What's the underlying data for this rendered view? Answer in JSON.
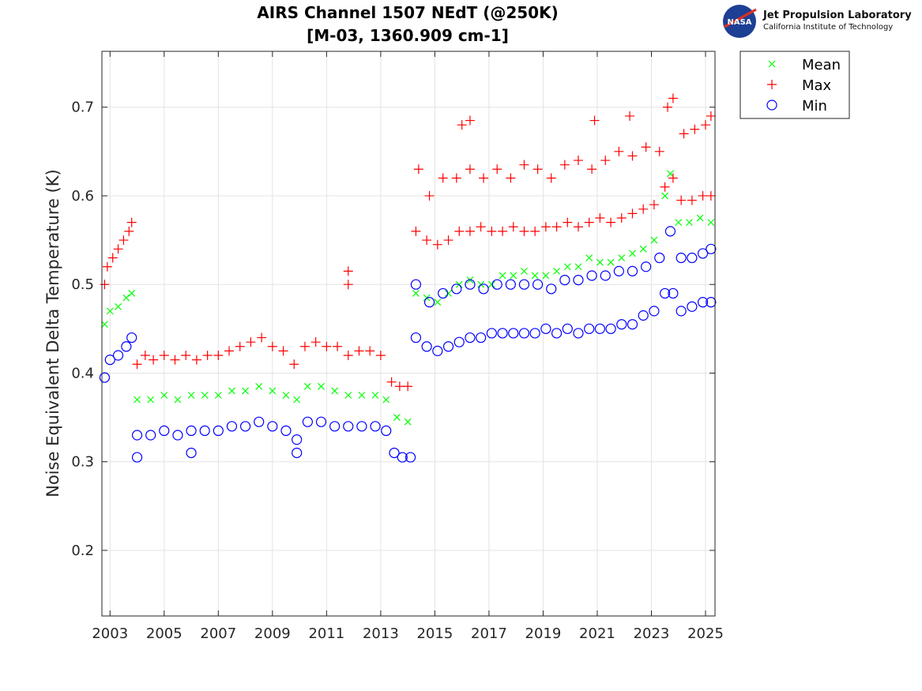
{
  "chart_data": {
    "type": "scatter",
    "title": "AIRS Channel 1507 NEdT (@250K)",
    "subtitle": "[M-03, 1360.909 cm-1]",
    "xlabel": "",
    "ylabel": "Noise Equivalent Delta Temperature (K)",
    "xlim": [
      2002.7,
      2025.35
    ],
    "ylim": [
      0.126,
      0.763
    ],
    "xticks": [
      2003,
      2005,
      2007,
      2009,
      2011,
      2013,
      2015,
      2017,
      2019,
      2021,
      2023,
      2025
    ],
    "xtick_labels": [
      "2003",
      "2005",
      "2007",
      "2009",
      "2011",
      "2013",
      "2015",
      "2017",
      "2019",
      "2021",
      "2023",
      "2025"
    ],
    "yticks": [
      0.2,
      0.3,
      0.4,
      0.5,
      0.6,
      0.7
    ],
    "ytick_labels": [
      "0.2",
      "0.3",
      "0.4",
      "0.5",
      "0.6",
      "0.7"
    ],
    "grid": true,
    "legend_position": "outside-top-right",
    "series": [
      {
        "name": "Mean",
        "marker": "x",
        "color": "#00ff00",
        "points": [
          [
            2002.8,
            0.455
          ],
          [
            2003.0,
            0.47
          ],
          [
            2003.3,
            0.475
          ],
          [
            2003.6,
            0.485
          ],
          [
            2003.8,
            0.49
          ],
          [
            2004.0,
            0.37
          ],
          [
            2004.5,
            0.37
          ],
          [
            2005.0,
            0.375
          ],
          [
            2005.5,
            0.37
          ],
          [
            2006.0,
            0.375
          ],
          [
            2006.5,
            0.375
          ],
          [
            2007.0,
            0.375
          ],
          [
            2007.5,
            0.38
          ],
          [
            2008.0,
            0.38
          ],
          [
            2008.5,
            0.385
          ],
          [
            2009.0,
            0.38
          ],
          [
            2009.5,
            0.375
          ],
          [
            2009.9,
            0.37
          ],
          [
            2010.3,
            0.385
          ],
          [
            2010.8,
            0.385
          ],
          [
            2011.3,
            0.38
          ],
          [
            2011.8,
            0.375
          ],
          [
            2012.3,
            0.375
          ],
          [
            2012.8,
            0.375
          ],
          [
            2013.2,
            0.37
          ],
          [
            2013.6,
            0.35
          ],
          [
            2014.0,
            0.345
          ],
          [
            2014.3,
            0.49
          ],
          [
            2014.7,
            0.485
          ],
          [
            2015.1,
            0.48
          ],
          [
            2015.5,
            0.49
          ],
          [
            2015.9,
            0.5
          ],
          [
            2016.3,
            0.505
          ],
          [
            2016.7,
            0.5
          ],
          [
            2017.1,
            0.5
          ],
          [
            2017.5,
            0.51
          ],
          [
            2017.9,
            0.51
          ],
          [
            2018.3,
            0.515
          ],
          [
            2018.7,
            0.51
          ],
          [
            2019.1,
            0.51
          ],
          [
            2019.5,
            0.515
          ],
          [
            2019.9,
            0.52
          ],
          [
            2020.3,
            0.52
          ],
          [
            2020.7,
            0.53
          ],
          [
            2021.1,
            0.525
          ],
          [
            2021.5,
            0.525
          ],
          [
            2021.9,
            0.53
          ],
          [
            2022.3,
            0.535
          ],
          [
            2022.7,
            0.54
          ],
          [
            2023.1,
            0.55
          ],
          [
            2023.5,
            0.6
          ],
          [
            2023.7,
            0.625
          ],
          [
            2024.0,
            0.57
          ],
          [
            2024.4,
            0.57
          ],
          [
            2024.8,
            0.575
          ],
          [
            2025.2,
            0.57
          ]
        ]
      },
      {
        "name": "Max",
        "marker": "+",
        "color": "#ff0000",
        "points": [
          [
            2002.8,
            0.5
          ],
          [
            2002.9,
            0.52
          ],
          [
            2003.1,
            0.53
          ],
          [
            2003.3,
            0.54
          ],
          [
            2003.5,
            0.55
          ],
          [
            2003.7,
            0.56
          ],
          [
            2003.8,
            0.57
          ],
          [
            2004.0,
            0.41
          ],
          [
            2004.3,
            0.42
          ],
          [
            2004.6,
            0.415
          ],
          [
            2005.0,
            0.42
          ],
          [
            2005.4,
            0.415
          ],
          [
            2005.8,
            0.42
          ],
          [
            2006.2,
            0.415
          ],
          [
            2006.6,
            0.42
          ],
          [
            2007.0,
            0.42
          ],
          [
            2007.4,
            0.425
          ],
          [
            2007.8,
            0.43
          ],
          [
            2008.2,
            0.435
          ],
          [
            2008.6,
            0.44
          ],
          [
            2009.0,
            0.43
          ],
          [
            2009.4,
            0.425
          ],
          [
            2009.8,
            0.41
          ],
          [
            2010.2,
            0.43
          ],
          [
            2010.6,
            0.435
          ],
          [
            2011.0,
            0.43
          ],
          [
            2011.4,
            0.43
          ],
          [
            2011.8,
            0.42
          ],
          [
            2011.8,
            0.515
          ],
          [
            2011.8,
            0.5
          ],
          [
            2012.2,
            0.425
          ],
          [
            2012.6,
            0.425
          ],
          [
            2013.0,
            0.42
          ],
          [
            2013.4,
            0.39
          ],
          [
            2013.7,
            0.385
          ],
          [
            2014.0,
            0.385
          ],
          [
            2014.3,
            0.56
          ],
          [
            2014.7,
            0.55
          ],
          [
            2015.1,
            0.545
          ],
          [
            2015.5,
            0.55
          ],
          [
            2015.9,
            0.56
          ],
          [
            2016.3,
            0.56
          ],
          [
            2016.7,
            0.565
          ],
          [
            2017.1,
            0.56
          ],
          [
            2017.5,
            0.56
          ],
          [
            2017.9,
            0.565
          ],
          [
            2018.3,
            0.56
          ],
          [
            2018.7,
            0.56
          ],
          [
            2019.1,
            0.565
          ],
          [
            2019.5,
            0.565
          ],
          [
            2019.9,
            0.57
          ],
          [
            2020.3,
            0.565
          ],
          [
            2020.7,
            0.57
          ],
          [
            2021.1,
            0.575
          ],
          [
            2021.5,
            0.57
          ],
          [
            2021.9,
            0.575
          ],
          [
            2022.3,
            0.58
          ],
          [
            2022.7,
            0.585
          ],
          [
            2023.1,
            0.59
          ],
          [
            2023.5,
            0.61
          ],
          [
            2023.8,
            0.62
          ],
          [
            2024.1,
            0.595
          ],
          [
            2024.5,
            0.595
          ],
          [
            2024.9,
            0.6
          ],
          [
            2025.2,
            0.6
          ],
          [
            2014.4,
            0.63
          ],
          [
            2014.8,
            0.6
          ],
          [
            2015.3,
            0.62
          ],
          [
            2015.8,
            0.62
          ],
          [
            2016.3,
            0.63
          ],
          [
            2016.8,
            0.62
          ],
          [
            2017.3,
            0.63
          ],
          [
            2017.8,
            0.62
          ],
          [
            2018.3,
            0.635
          ],
          [
            2018.8,
            0.63
          ],
          [
            2019.3,
            0.62
          ],
          [
            2019.8,
            0.635
          ],
          [
            2020.3,
            0.64
          ],
          [
            2020.8,
            0.63
          ],
          [
            2021.3,
            0.64
          ],
          [
            2021.8,
            0.65
          ],
          [
            2022.3,
            0.645
          ],
          [
            2022.8,
            0.655
          ],
          [
            2023.3,
            0.65
          ],
          [
            2023.6,
            0.7
          ],
          [
            2023.8,
            0.71
          ],
          [
            2024.2,
            0.67
          ],
          [
            2024.6,
            0.675
          ],
          [
            2025.0,
            0.68
          ],
          [
            2025.2,
            0.69
          ],
          [
            2016.0,
            0.68
          ],
          [
            2016.3,
            0.685
          ],
          [
            2020.9,
            0.685
          ],
          [
            2022.2,
            0.69
          ]
        ]
      },
      {
        "name": "Min",
        "marker": "o",
        "color": "#0000ff",
        "points": [
          [
            2002.8,
            0.395
          ],
          [
            2003.0,
            0.415
          ],
          [
            2003.3,
            0.42
          ],
          [
            2003.6,
            0.43
          ],
          [
            2003.8,
            0.44
          ],
          [
            2004.0,
            0.33
          ],
          [
            2004.5,
            0.33
          ],
          [
            2005.0,
            0.335
          ],
          [
            2005.5,
            0.33
          ],
          [
            2006.0,
            0.335
          ],
          [
            2006.5,
            0.335
          ],
          [
            2007.0,
            0.335
          ],
          [
            2007.5,
            0.34
          ],
          [
            2008.0,
            0.34
          ],
          [
            2008.5,
            0.345
          ],
          [
            2009.0,
            0.34
          ],
          [
            2009.5,
            0.335
          ],
          [
            2009.9,
            0.325
          ],
          [
            2010.3,
            0.345
          ],
          [
            2010.8,
            0.345
          ],
          [
            2011.3,
            0.34
          ],
          [
            2011.8,
            0.34
          ],
          [
            2012.3,
            0.34
          ],
          [
            2012.8,
            0.34
          ],
          [
            2013.2,
            0.335
          ],
          [
            2013.5,
            0.31
          ],
          [
            2013.8,
            0.305
          ],
          [
            2014.1,
            0.305
          ],
          [
            2004.0,
            0.305
          ],
          [
            2006.0,
            0.31
          ],
          [
            2009.9,
            0.31
          ],
          [
            2014.3,
            0.44
          ],
          [
            2014.7,
            0.43
          ],
          [
            2015.1,
            0.425
          ],
          [
            2015.5,
            0.43
          ],
          [
            2015.9,
            0.435
          ],
          [
            2016.3,
            0.44
          ],
          [
            2016.7,
            0.44
          ],
          [
            2017.1,
            0.445
          ],
          [
            2017.5,
            0.445
          ],
          [
            2017.9,
            0.445
          ],
          [
            2018.3,
            0.445
          ],
          [
            2018.7,
            0.445
          ],
          [
            2019.1,
            0.45
          ],
          [
            2019.5,
            0.445
          ],
          [
            2019.9,
            0.45
          ],
          [
            2020.3,
            0.445
          ],
          [
            2020.7,
            0.45
          ],
          [
            2021.1,
            0.45
          ],
          [
            2021.5,
            0.45
          ],
          [
            2021.9,
            0.455
          ],
          [
            2022.3,
            0.455
          ],
          [
            2022.7,
            0.465
          ],
          [
            2023.1,
            0.47
          ],
          [
            2023.5,
            0.49
          ],
          [
            2023.8,
            0.49
          ],
          [
            2024.1,
            0.47
          ],
          [
            2024.5,
            0.475
          ],
          [
            2024.9,
            0.48
          ],
          [
            2025.2,
            0.48
          ],
          [
            2014.3,
            0.5
          ],
          [
            2014.8,
            0.48
          ],
          [
            2015.3,
            0.49
          ],
          [
            2015.8,
            0.495
          ],
          [
            2016.3,
            0.5
          ],
          [
            2016.8,
            0.495
          ],
          [
            2017.3,
            0.5
          ],
          [
            2017.8,
            0.5
          ],
          [
            2018.3,
            0.5
          ],
          [
            2018.8,
            0.5
          ],
          [
            2019.3,
            0.495
          ],
          [
            2019.8,
            0.505
          ],
          [
            2020.3,
            0.505
          ],
          [
            2020.8,
            0.51
          ],
          [
            2021.3,
            0.51
          ],
          [
            2021.8,
            0.515
          ],
          [
            2022.3,
            0.515
          ],
          [
            2022.8,
            0.52
          ],
          [
            2023.3,
            0.53
          ],
          [
            2023.7,
            0.56
          ],
          [
            2024.1,
            0.53
          ],
          [
            2024.5,
            0.53
          ],
          [
            2024.9,
            0.535
          ],
          [
            2025.2,
            0.54
          ]
        ]
      }
    ]
  },
  "logo": {
    "org": "Jet Propulsion Laboratory",
    "subtitle": "California Institute of Technology",
    "agency": "NASA"
  }
}
